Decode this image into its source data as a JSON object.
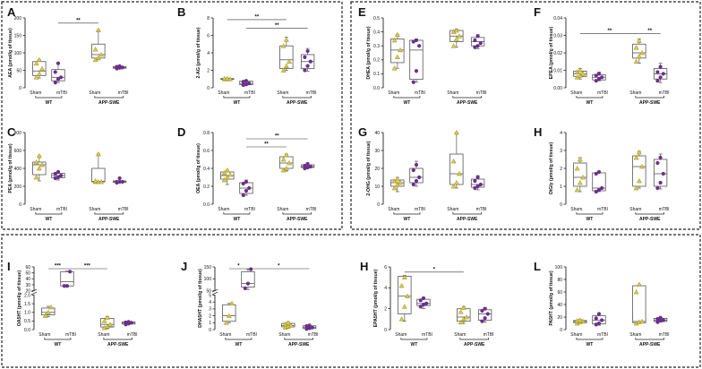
{
  "colors": {
    "wt": "#d9c94a",
    "wt_stroke": "#8a7d16",
    "tbi": "#6b2f8c",
    "box": "#555555"
  },
  "group_labels": {
    "sham": "Sham",
    "tbi": "mTBI",
    "wt": "WT",
    "app": "APP-SWE"
  },
  "sig_labels": {
    "s1": "*",
    "s2": "**",
    "s3": "***"
  },
  "chart_data": [
    {
      "id": "A",
      "type": "box",
      "ylabel": "AEA (pmol/g of tissue)",
      "yticks": [
        "0",
        "50",
        "100",
        "150",
        "200"
      ],
      "ylim": [
        0,
        200
      ],
      "groups": [
        {
          "values": [
            30,
            40,
            55,
            70,
            80
          ],
          "q": [
            35,
            48,
            75
          ],
          "range": [
            28,
            80
          ]
        },
        {
          "values": [
            15,
            25,
            30,
            45,
            70
          ],
          "q": [
            20,
            30,
            52
          ],
          "range": [
            15,
            70
          ]
        },
        {
          "values": [
            80,
            85,
            95,
            110,
            165
          ],
          "q": [
            85,
            95,
            125
          ],
          "range": [
            80,
            165
          ]
        },
        {
          "values": [
            55,
            57,
            58,
            60,
            62
          ],
          "q": [
            56,
            58,
            61
          ],
          "range": [
            55,
            62
          ]
        }
      ],
      "sig": [
        {
          "from": 1,
          "to": 2,
          "level": "s2",
          "y": 185
        }
      ]
    },
    {
      "id": "B",
      "type": "box",
      "ylabel": "2-AG (pmol/g of tissue)",
      "yticks": [
        "0",
        "2",
        "4",
        "6",
        "8"
      ],
      "ylim": [
        0,
        8
      ],
      "groups": [
        {
          "values": [
            1.0,
            1.0,
            1.0,
            1.05,
            1.05
          ],
          "q": [
            1.0,
            1.0,
            1.05
          ],
          "range": [
            0.95,
            1.1
          ]
        },
        {
          "values": [
            0.3,
            0.4,
            0.5,
            0.7,
            0.8
          ],
          "q": [
            0.35,
            0.5,
            0.75
          ],
          "range": [
            0.3,
            0.85
          ]
        },
        {
          "values": [
            2.0,
            2.5,
            3.0,
            4.8,
            5.5
          ],
          "q": [
            2.2,
            3.2,
            4.8
          ],
          "range": [
            2.0,
            5.8
          ]
        },
        {
          "values": [
            2.0,
            2.5,
            3.0,
            3.5,
            4.2
          ],
          "q": [
            2.2,
            3.0,
            3.8
          ],
          "range": [
            1.9,
            4.5
          ]
        }
      ],
      "sig": [
        {
          "from": 0,
          "to": 2,
          "level": "s2",
          "y": 7.8
        },
        {
          "from": 1,
          "to": 3,
          "level": "s2",
          "y": 6.8
        }
      ]
    },
    {
      "id": "C",
      "type": "box",
      "ylabel": "PEA (pmol/g of tissue)",
      "yticks": [
        "0",
        "200",
        "400",
        "600",
        "800"
      ],
      "ylim": [
        0,
        800
      ],
      "groups": [
        {
          "values": [
            300,
            400,
            440,
            470,
            540
          ],
          "q": [
            330,
            440,
            470
          ],
          "range": [
            260,
            540
          ]
        },
        {
          "values": [
            290,
            300,
            320,
            340,
            360
          ],
          "q": [
            295,
            320,
            345
          ],
          "range": [
            270,
            370
          ]
        },
        {
          "values": [
            250,
            250,
            250,
            260,
            560
          ],
          "q": [
            250,
            255,
            400
          ],
          "range": [
            240,
            560
          ]
        },
        {
          "values": [
            240,
            250,
            250,
            250,
            290
          ],
          "q": [
            245,
            250,
            260
          ],
          "range": [
            240,
            290
          ]
        }
      ],
      "sig": []
    },
    {
      "id": "D",
      "type": "box",
      "ylabel": "OEA (pmol/g of tissue)",
      "yticks": [
        "0.0",
        "0.2",
        "0.4",
        "0.6",
        "0.8"
      ],
      "ylim": [
        0,
        0.8
      ],
      "groups": [
        {
          "values": [
            0.27,
            0.3,
            0.33,
            0.35,
            0.38
          ],
          "q": [
            0.28,
            0.32,
            0.36
          ],
          "range": [
            0.22,
            0.38
          ]
        },
        {
          "values": [
            0.1,
            0.15,
            0.18,
            0.23,
            0.25
          ],
          "q": [
            0.12,
            0.18,
            0.24
          ],
          "range": [
            0.1,
            0.27
          ]
        },
        {
          "values": [
            0.38,
            0.4,
            0.46,
            0.5,
            0.55
          ],
          "q": [
            0.4,
            0.46,
            0.53
          ],
          "range": [
            0.37,
            0.56
          ]
        },
        {
          "values": [
            0.4,
            0.41,
            0.42,
            0.43,
            0.45
          ],
          "q": [
            0.41,
            0.42,
            0.44
          ],
          "range": [
            0.4,
            0.46
          ]
        }
      ],
      "sig": [
        {
          "from": 1,
          "to": 2,
          "level": "s2",
          "y": 0.64
        },
        {
          "from": 1,
          "to": 3,
          "level": "s2",
          "y": 0.73
        }
      ]
    },
    {
      "id": "E",
      "type": "box",
      "ylabel": "DHEA (pmol/g of tissue)",
      "yticks": [
        "0.0",
        "0.1",
        "0.2",
        "0.3",
        "0.4",
        "0.5"
      ],
      "ylim": [
        0,
        0.5
      ],
      "groups": [
        {
          "values": [
            0.14,
            0.22,
            0.27,
            0.34,
            0.38
          ],
          "q": [
            0.18,
            0.27,
            0.35
          ],
          "range": [
            0.14,
            0.38
          ]
        },
        {
          "values": [
            0.04,
            0.12,
            0.3,
            0.33,
            0.34
          ],
          "q": [
            0.06,
            0.27,
            0.34
          ],
          "range": [
            0.04,
            0.35
          ]
        },
        {
          "values": [
            0.3,
            0.35,
            0.37,
            0.4,
            0.41
          ],
          "q": [
            0.33,
            0.37,
            0.41
          ],
          "range": [
            0.29,
            0.42
          ]
        },
        {
          "values": [
            0.29,
            0.3,
            0.32,
            0.34,
            0.37
          ],
          "q": [
            0.3,
            0.33,
            0.36
          ],
          "range": [
            0.28,
            0.38
          ]
        }
      ],
      "sig": []
    },
    {
      "id": "F",
      "type": "box",
      "ylabel": "EPEA (pmol/g of tissue)",
      "yticks": [
        "0.00",
        "0.01",
        "0.02",
        "0.03",
        "0.04"
      ],
      "ylim": [
        0,
        0.04
      ],
      "groups": [
        {
          "values": [
            0.006,
            0.007,
            0.008,
            0.009,
            0.01
          ],
          "q": [
            0.0065,
            0.008,
            0.0095
          ],
          "range": [
            0.005,
            0.011
          ]
        },
        {
          "values": [
            0.004,
            0.005,
            0.006,
            0.007,
            0.008
          ],
          "q": [
            0.0045,
            0.006,
            0.0075
          ],
          "range": [
            0.004,
            0.009
          ]
        },
        {
          "values": [
            0.015,
            0.018,
            0.02,
            0.023,
            0.027
          ],
          "q": [
            0.017,
            0.02,
            0.025
          ],
          "range": [
            0.014,
            0.028
          ]
        },
        {
          "values": [
            0.004,
            0.006,
            0.008,
            0.009,
            0.012
          ],
          "q": [
            0.005,
            0.008,
            0.011
          ],
          "range": [
            0.003,
            0.014
          ]
        }
      ],
      "sig": [
        {
          "from": 0,
          "to": 2,
          "level": "s2",
          "y": 0.031
        },
        {
          "from": 2,
          "to": 3,
          "level": "s2",
          "y": 0.031
        }
      ]
    },
    {
      "id": "G",
      "type": "box",
      "ylabel": "2-OHG (pmol/g of tissue)",
      "yticks": [
        "0",
        "10",
        "20",
        "30",
        "40"
      ],
      "ylim": [
        0,
        40
      ],
      "groups": [
        {
          "values": [
            9,
            11,
            12,
            13,
            14
          ],
          "q": [
            10,
            12,
            13.5
          ],
          "range": [
            7,
            15
          ]
        },
        {
          "values": [
            11,
            13,
            15,
            19,
            22
          ],
          "q": [
            12,
            15,
            20
          ],
          "range": [
            10,
            24
          ]
        },
        {
          "values": [
            10,
            12,
            17,
            24,
            40
          ],
          "q": [
            11,
            17,
            28
          ],
          "range": [
            9,
            40
          ]
        },
        {
          "values": [
            9,
            10,
            11,
            13,
            15
          ],
          "q": [
            9.5,
            11,
            14
          ],
          "range": [
            8,
            16
          ]
        }
      ],
      "sig": []
    },
    {
      "id": "H",
      "type": "box",
      "ylabel": "OiGly (pmol/g of tissue)",
      "yticks": [
        "0",
        "1",
        "2",
        "3",
        "4"
      ],
      "ylim": [
        0,
        4
      ],
      "groups": [
        {
          "values": [
            0.8,
            1.2,
            1.5,
            2.0,
            2.5
          ],
          "q": [
            1.0,
            1.5,
            2.3
          ],
          "range": [
            0.7,
            2.6
          ]
        },
        {
          "values": [
            0.7,
            0.8,
            0.9,
            1.7,
            1.8
          ],
          "q": [
            0.75,
            0.9,
            1.75
          ],
          "range": [
            0.7,
            1.85
          ]
        },
        {
          "values": [
            0.9,
            1.3,
            2.1,
            2.6,
            2.9
          ],
          "q": [
            1.0,
            2.1,
            2.7
          ],
          "range": [
            0.9,
            2.95
          ]
        },
        {
          "values": [
            0.9,
            1.2,
            1.7,
            2.3,
            2.6
          ],
          "q": [
            1.0,
            1.7,
            2.5
          ],
          "range": [
            0.85,
            2.8
          ]
        }
      ],
      "sig": []
    },
    {
      "id": "I",
      "type": "box",
      "ylabel": "OA5HT (pmol/g of tissue)",
      "broken_axis": true,
      "yticks": [
        "0.0",
        "0.5",
        "1.0",
        "1.5",
        "2.0",
        "20",
        "30",
        "40",
        "50",
        "60"
      ],
      "groups": [
        {
          "values": [
            0.8,
            1.0,
            1.3
          ],
          "q": [
            0.85,
            1.0,
            1.25
          ],
          "range": [
            0.75,
            1.35
          ]
        },
        {
          "values": [
            28,
            28,
            52
          ],
          "q": [
            28,
            35,
            52
          ],
          "range": [
            27,
            53
          ]
        },
        {
          "values": [
            0.1,
            0.2,
            0.3,
            0.5,
            0.7
          ],
          "q": [
            0.15,
            0.3,
            0.65
          ],
          "range": [
            0.05,
            0.75
          ]
        },
        {
          "values": [
            0.3,
            0.35,
            0.4,
            0.42,
            0.45
          ],
          "q": [
            0.32,
            0.4,
            0.44
          ],
          "range": [
            0.3,
            0.46
          ]
        }
      ],
      "sig": [
        {
          "from": 0,
          "to": 1,
          "level": "s3"
        },
        {
          "from": 1,
          "to": 2,
          "level": "s3"
        }
      ]
    },
    {
      "id": "J",
      "type": "box",
      "ylabel": "DHA5HT (pmol/g of tissue)",
      "broken_axis": true,
      "yticks": [
        "0",
        "1",
        "2",
        "3",
        "4",
        "5",
        "50",
        "100",
        "150"
      ],
      "groups": [
        {
          "values": [
            1.0,
            2.0,
            3.8
          ],
          "q": [
            1.2,
            2.0,
            3.6
          ],
          "range": [
            1.0,
            3.8
          ]
        },
        {
          "values": [
            60,
            80,
            140
          ],
          "q": [
            65,
            80,
            130
          ],
          "range": [
            55,
            140
          ]
        },
        {
          "values": [
            0.3,
            0.5,
            0.6,
            0.8,
            1.0
          ],
          "q": [
            0.4,
            0.6,
            0.9
          ],
          "range": [
            0.2,
            1.1
          ]
        },
        {
          "values": [
            0.1,
            0.2,
            0.3,
            0.5,
            0.6
          ],
          "q": [
            0.15,
            0.3,
            0.55
          ],
          "range": [
            0.05,
            0.65
          ]
        }
      ],
      "sig": [
        {
          "from": 0,
          "to": 1,
          "level": "s1"
        },
        {
          "from": 1,
          "to": 3,
          "level": "s1"
        }
      ]
    },
    {
      "id": "H2",
      "label": "H",
      "type": "box",
      "ylabel": "EPA5HT (pmol/g of tissue)",
      "yticks": [
        "0",
        "2",
        "4",
        "6"
      ],
      "ylim": [
        0,
        6
      ],
      "groups": [
        {
          "values": [
            1.0,
            2.2,
            3.2,
            4.2,
            5.0
          ],
          "q": [
            1.5,
            3.2,
            5.1
          ],
          "range": [
            0.8,
            5.2
          ]
        },
        {
          "values": [
            2.2,
            2.4,
            2.5,
            2.8,
            3.0
          ],
          "q": [
            2.3,
            2.5,
            2.9
          ],
          "range": [
            2.0,
            3.1
          ]
        },
        {
          "values": [
            0.7,
            1.0,
            1.2,
            1.7,
            2.1
          ],
          "q": [
            0.8,
            1.2,
            2.0
          ],
          "range": [
            0.6,
            2.2
          ]
        },
        {
          "values": [
            0.8,
            1.1,
            1.5,
            1.8,
            2.0
          ],
          "q": [
            0.9,
            1.5,
            1.9
          ],
          "range": [
            0.7,
            2.1
          ]
        }
      ],
      "sig": [
        {
          "from": 0,
          "to": 2,
          "level": "s1",
          "y": 5.5
        }
      ]
    },
    {
      "id": "L",
      "type": "box",
      "ylabel": "PA5HT (pmol/g of tissue)",
      "yticks": [
        "0",
        "20",
        "40",
        "60",
        "80",
        "100"
      ],
      "ylim": [
        0,
        100
      ],
      "groups": [
        {
          "values": [
            10,
            12,
            13,
            14,
            15
          ],
          "q": [
            11,
            13,
            14.5
          ],
          "range": [
            10,
            16
          ]
        },
        {
          "values": [
            8,
            10,
            15,
            18,
            25
          ],
          "q": [
            9,
            15,
            22
          ],
          "range": [
            7,
            26
          ]
        },
        {
          "values": [
            10,
            12,
            13,
            60,
            72
          ],
          "q": [
            11,
            13,
            70
          ],
          "range": [
            10,
            72
          ]
        },
        {
          "values": [
            12,
            14,
            15,
            17,
            19
          ],
          "q": [
            13,
            15,
            18
          ],
          "range": [
            12,
            19
          ]
        }
      ],
      "sig": []
    }
  ]
}
